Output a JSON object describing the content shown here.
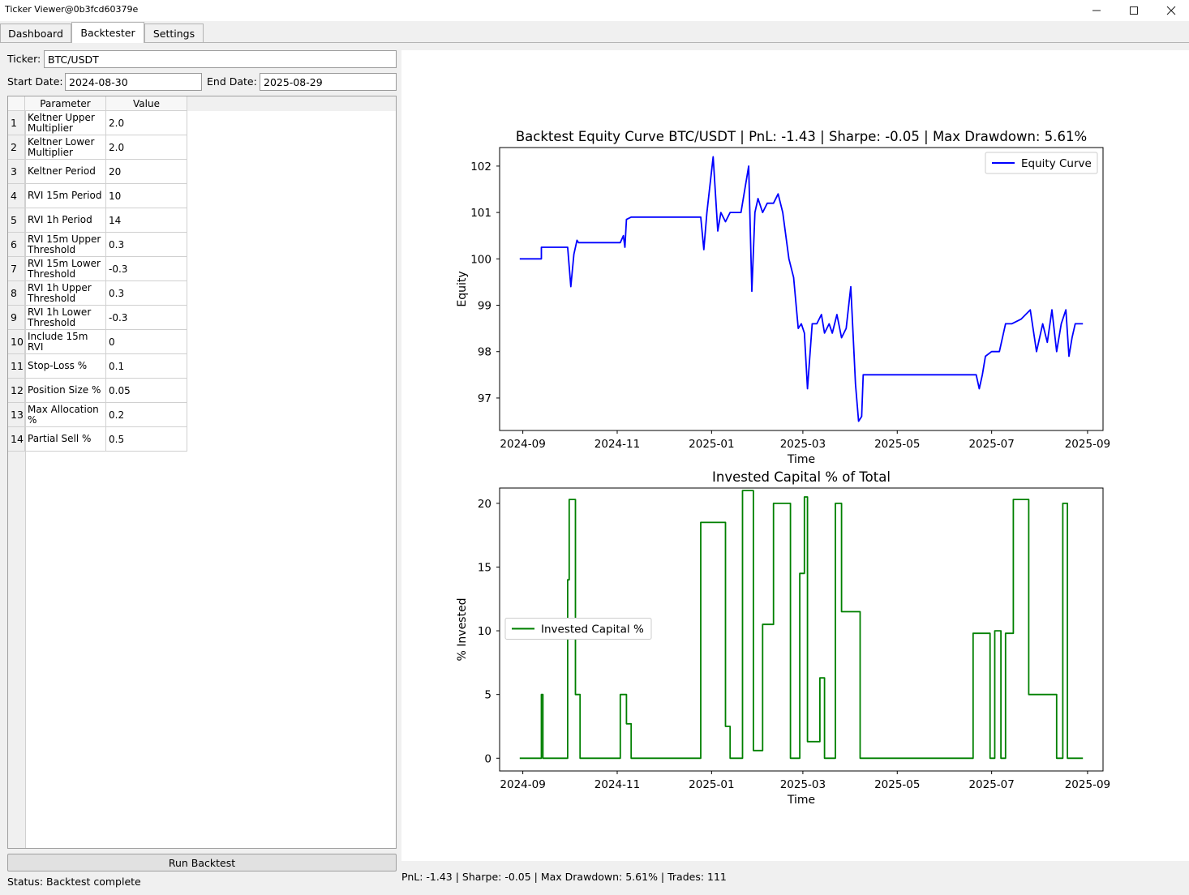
{
  "window": {
    "title": "Ticker Viewer@0b3fcd60379e",
    "minimize_icon": "minimize-icon",
    "maximize_icon": "maximize-icon",
    "close_icon": "close-icon"
  },
  "tabs": [
    {
      "label": "Dashboard",
      "active": false
    },
    {
      "label": "Backtester",
      "active": true
    },
    {
      "label": "Settings",
      "active": false
    }
  ],
  "form": {
    "ticker_label": "Ticker:",
    "ticker_value": "BTC/USDT",
    "start_label": "Start Date:",
    "start_value": "2024-08-30",
    "end_label": "End Date:",
    "end_value": "2025-08-29"
  },
  "params_table": {
    "headers": [
      "Parameter",
      "Value"
    ],
    "rows": [
      {
        "num": "1",
        "param": "Keltner Upper Multiplier",
        "value": "2.0"
      },
      {
        "num": "2",
        "param": "Keltner Lower Multiplier",
        "value": "2.0"
      },
      {
        "num": "3",
        "param": "Keltner Period",
        "value": "20"
      },
      {
        "num": "4",
        "param": "RVI 15m Period",
        "value": "10"
      },
      {
        "num": "5",
        "param": "RVI 1h Period",
        "value": "14"
      },
      {
        "num": "6",
        "param": "RVI 15m Upper Threshold",
        "value": "0.3"
      },
      {
        "num": "7",
        "param": "RVI 15m Lower Threshold",
        "value": "-0.3"
      },
      {
        "num": "8",
        "param": "RVI 1h Upper Threshold",
        "value": "0.3"
      },
      {
        "num": "9",
        "param": "RVI 1h Lower Threshold",
        "value": "-0.3"
      },
      {
        "num": "10",
        "param": "Include 15m RVI",
        "value": "0"
      },
      {
        "num": "11",
        "param": "Stop-Loss %",
        "value": "0.1"
      },
      {
        "num": "12",
        "param": "Position Size %",
        "value": "0.05"
      },
      {
        "num": "13",
        "param": "Max Allocation %",
        "value": "0.2"
      },
      {
        "num": "14",
        "param": "Partial Sell %",
        "value": "0.5"
      }
    ]
  },
  "run_button_label": "Run Backtest",
  "status_text": "Status: Backtest complete",
  "summary_text": "PnL: -1.43 | Sharpe: -0.05 | Max Drawdown: 5.61% | Trades: 111",
  "chart_data": [
    {
      "type": "line",
      "title": "Backtest Equity Curve BTC/USDT | PnL: -1.43 | Sharpe: -0.05 | Max Drawdown: 5.61%",
      "xlabel": "Time",
      "ylabel": "Equity",
      "x_ticks": [
        "2024-09",
        "2024-11",
        "2025-01",
        "2025-03",
        "2025-05",
        "2025-07",
        "2025-09"
      ],
      "y_ticks": [
        97,
        98,
        99,
        100,
        101,
        102
      ],
      "ylim": [
        96.3,
        102.4
      ],
      "xlim": [
        "2024-08-17",
        "2025-09-11"
      ],
      "legend": "top-right",
      "color": "#0000ff",
      "series": [
        {
          "name": "Equity Curve",
          "x": [
            "2024-08-30",
            "2024-09-13",
            "2024-09-13",
            "2024-09-30",
            "2024-10-02",
            "2024-10-04",
            "2024-10-06",
            "2024-10-07",
            "2024-10-09",
            "2024-10-12",
            "2024-10-20",
            "2024-11-03",
            "2024-11-05",
            "2024-11-06",
            "2024-11-07",
            "2024-11-10",
            "2024-12-25",
            "2024-12-27",
            "2024-12-29",
            "2025-01-02",
            "2025-01-05",
            "2025-01-07",
            "2025-01-10",
            "2025-01-13",
            "2025-01-16",
            "2025-01-20",
            "2025-01-25",
            "2025-01-27",
            "2025-01-29",
            "2025-01-31",
            "2025-02-03",
            "2025-02-06",
            "2025-02-10",
            "2025-02-13",
            "2025-02-16",
            "2025-02-20",
            "2025-02-23",
            "2025-02-26",
            "2025-02-28",
            "2025-03-02",
            "2025-03-04",
            "2025-03-07",
            "2025-03-10",
            "2025-03-13",
            "2025-03-15",
            "2025-03-18",
            "2025-03-20",
            "2025-03-23",
            "2025-03-26",
            "2025-03-29",
            "2025-04-01",
            "2025-04-04",
            "2025-04-06",
            "2025-04-08",
            "2025-04-09",
            "2025-04-11",
            "2025-06-21",
            "2025-06-23",
            "2025-06-25",
            "2025-06-27",
            "2025-07-01",
            "2025-07-06",
            "2025-07-10",
            "2025-07-14",
            "2025-07-20",
            "2025-07-26",
            "2025-07-30",
            "2025-08-03",
            "2025-08-06",
            "2025-08-09",
            "2025-08-12",
            "2025-08-15",
            "2025-08-18",
            "2025-08-20",
            "2025-08-22",
            "2025-08-24",
            "2025-08-26",
            "2025-08-29"
          ],
          "values": [
            100.0,
            100.0,
            100.25,
            100.25,
            99.4,
            100.1,
            100.4,
            100.35,
            100.35,
            100.35,
            100.35,
            100.35,
            100.5,
            100.25,
            100.85,
            100.9,
            100.9,
            100.2,
            101.0,
            102.2,
            100.6,
            101.0,
            100.8,
            101.0,
            101.0,
            101.0,
            102.0,
            99.3,
            101.0,
            101.3,
            101.0,
            101.2,
            101.2,
            101.4,
            101.0,
            100.0,
            99.6,
            98.5,
            98.6,
            98.4,
            97.2,
            98.6,
            98.6,
            98.8,
            98.4,
            98.6,
            98.4,
            98.8,
            98.3,
            98.5,
            99.4,
            97.3,
            96.5,
            96.6,
            97.5,
            97.5,
            97.5,
            97.2,
            97.5,
            97.9,
            98.0,
            98.0,
            98.6,
            98.6,
            98.7,
            98.9,
            98.0,
            98.6,
            98.2,
            98.9,
            98.0,
            98.6,
            98.9,
            97.9,
            98.3,
            98.6,
            98.6,
            98.6
          ]
        }
      ]
    },
    {
      "type": "line",
      "title": "Invested Capital % of Total",
      "xlabel": "Time",
      "ylabel": "% Invested",
      "x_ticks": [
        "2024-09",
        "2024-11",
        "2025-01",
        "2025-03",
        "2025-05",
        "2025-07",
        "2025-09"
      ],
      "y_ticks": [
        0,
        5,
        10,
        15,
        20
      ],
      "ylim": [
        -1,
        21.2
      ],
      "xlim": [
        "2024-08-17",
        "2025-09-11"
      ],
      "legend": "center-left",
      "color": "#008000",
      "series": [
        {
          "name": "Invested Capital %",
          "x": [
            "2024-08-30",
            "2024-09-13",
            "2024-09-13",
            "2024-09-14",
            "2024-09-14",
            "2024-09-30",
            "2024-09-30",
            "2024-10-01",
            "2024-10-01",
            "2024-10-05",
            "2024-10-05",
            "2024-10-08",
            "2024-10-08",
            "2024-11-03",
            "2024-11-03",
            "2024-11-07",
            "2024-11-07",
            "2024-11-10",
            "2024-11-10",
            "2024-12-25",
            "2024-12-25",
            "2025-01-10",
            "2025-01-10",
            "2025-01-13",
            "2025-01-13",
            "2025-01-21",
            "2025-01-21",
            "2025-01-28",
            "2025-01-28",
            "2025-02-03",
            "2025-02-03",
            "2025-02-10",
            "2025-02-10",
            "2025-02-21",
            "2025-02-21",
            "2025-02-27",
            "2025-02-27",
            "2025-03-02",
            "2025-03-02",
            "2025-03-04",
            "2025-03-04",
            "2025-03-12",
            "2025-03-12",
            "2025-03-15",
            "2025-03-15",
            "2025-03-22",
            "2025-03-22",
            "2025-03-26",
            "2025-03-26",
            "2025-04-07",
            "2025-04-07",
            "2025-04-11",
            "2025-04-11",
            "2025-06-19",
            "2025-06-19",
            "2025-06-30",
            "2025-06-30",
            "2025-07-03",
            "2025-07-03",
            "2025-07-07",
            "2025-07-07",
            "2025-07-10",
            "2025-07-10",
            "2025-07-15",
            "2025-07-15",
            "2025-07-25",
            "2025-07-25",
            "2025-08-12",
            "2025-08-12",
            "2025-08-16",
            "2025-08-16",
            "2025-08-19",
            "2025-08-19",
            "2025-08-26",
            "2025-08-26",
            "2025-08-29"
          ],
          "values": [
            0,
            0,
            5.0,
            5.0,
            0,
            0,
            14.0,
            14.0,
            20.3,
            20.3,
            5.0,
            5.0,
            0,
            0,
            5.0,
            5.0,
            2.7,
            2.7,
            0,
            0,
            18.5,
            18.5,
            2.5,
            2.5,
            0,
            0,
            21.0,
            21.0,
            0.6,
            0.6,
            10.5,
            10.5,
            20.0,
            20.0,
            0,
            0,
            14.5,
            14.5,
            20.5,
            20.5,
            1.3,
            1.3,
            6.3,
            6.3,
            0,
            0,
            20.0,
            20.0,
            11.5,
            11.5,
            0,
            0,
            0,
            0,
            9.8,
            9.8,
            0,
            0,
            10.0,
            10.0,
            0,
            0,
            9.8,
            9.8,
            20.3,
            20.3,
            5.0,
            5.0,
            0,
            0,
            20.0,
            20.0,
            0,
            0,
            0,
            0
          ]
        }
      ]
    }
  ]
}
